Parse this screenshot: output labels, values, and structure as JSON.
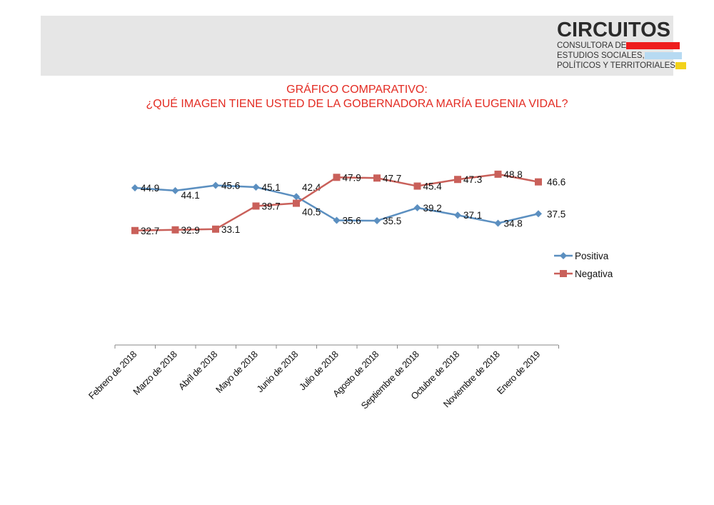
{
  "logo": {
    "name": "CIRCUITOS",
    "lines": [
      "CONSULTORA DE",
      "ESTUDIOS SOCIALES,",
      "POLÍTICOS Y TERRITORIALES"
    ],
    "colors": [
      "#ee1c1c",
      "#b7daf2",
      "#f2d21b"
    ]
  },
  "chart_data": {
    "type": "line",
    "title": "GRÁFICO COMPARATIVO:",
    "subtitle": "¿QUÉ IMAGEN TIENE USTED DE LA GOBERNADORA MARÍA EUGENIA VIDAL?",
    "categories": [
      "Febrero de 2018",
      "Marzo de 2018",
      "Abril de 2018",
      "Mayo de 2018",
      "Junio de 2018",
      "Julio de 2018",
      "Agosto de 2018",
      "Septiembre de 2018",
      "Octubre de 2018",
      "Noviembre de 2018",
      "Enero de 2019"
    ],
    "series": [
      {
        "name": "Positiva",
        "color": "#5b8fc0",
        "marker": "diamond",
        "values": [
          44.9,
          44.1,
          45.6,
          45.1,
          42.4,
          35.6,
          35.5,
          39.2,
          37.1,
          34.8,
          37.5
        ]
      },
      {
        "name": "Negativa",
        "color": "#c9605a",
        "marker": "square",
        "values": [
          32.7,
          32.9,
          33.1,
          39.7,
          40.5,
          47.9,
          47.7,
          45.4,
          47.3,
          48.8,
          46.6
        ]
      }
    ],
    "ylim": [
      0,
      60
    ],
    "grid": false,
    "legend": "right",
    "data_labels": true
  }
}
